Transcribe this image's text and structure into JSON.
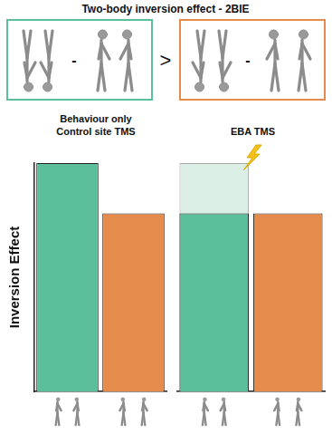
{
  "header": {
    "title": "Two-body inversion effect - 2BIE",
    "minus": "-",
    "greater": ">"
  },
  "chart_data": [
    {
      "type": "bar",
      "title": "Behaviour only Control site TMS",
      "y_label": "Inversion Effect",
      "categories": [
        null,
        null
      ],
      "values": [
        100,
        78
      ],
      "colors": [
        "#5cbf9b",
        "#e58c4c"
      ],
      "ylim": [
        0,
        100
      ],
      "tick_labels": false,
      "grid": false
    },
    {
      "type": "bar",
      "title": "EBA TMS",
      "categories": [
        null,
        null
      ],
      "series": [
        {
          "values": [
            100,
            null
          ],
          "color": "#dcefe7"
        },
        {
          "values": [
            78,
            78
          ],
          "colors": [
            "#5cbf9b",
            "#e58c4c"
          ]
        }
      ],
      "ylim": [
        0,
        100
      ],
      "tick_labels": false,
      "grid": false
    }
  ]
}
